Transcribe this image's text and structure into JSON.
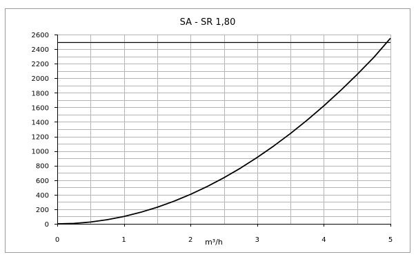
{
  "chart_data": {
    "type": "line",
    "title": "SA - SR 1,80",
    "xlabel": "m³/h",
    "ylabel": "",
    "xlim": [
      0,
      5
    ],
    "ylim": [
      0,
      2600
    ],
    "x_ticks": [
      "0",
      "1",
      "2",
      "3",
      "4",
      "5"
    ],
    "y_ticks": [
      "0",
      "200",
      "400",
      "600",
      "800",
      "1000",
      "1200",
      "1400",
      "1600",
      "1800",
      "2000",
      "2200",
      "2400",
      "2600"
    ],
    "grid": true,
    "legend": "none",
    "x_minor_step": 0.5,
    "y_minor_step": 100,
    "series": [
      {
        "x": [
          0,
          0.25,
          0.5,
          0.75,
          1,
          1.25,
          1.5,
          1.75,
          2,
          2.25,
          2.5,
          2.75,
          3,
          3.25,
          3.5,
          3.75,
          4,
          4.25,
          4.5,
          4.75,
          5
        ],
        "values": [
          0,
          6,
          25,
          57,
          101,
          158,
          228,
          310,
          405,
          513,
          633,
          766,
          912,
          1070,
          1241,
          1425,
          1621,
          1830,
          2052,
          2286,
          2550
        ],
        "color": "#000000"
      }
    ],
    "reference_line": {
      "y": 2500,
      "color": "#000000"
    }
  }
}
